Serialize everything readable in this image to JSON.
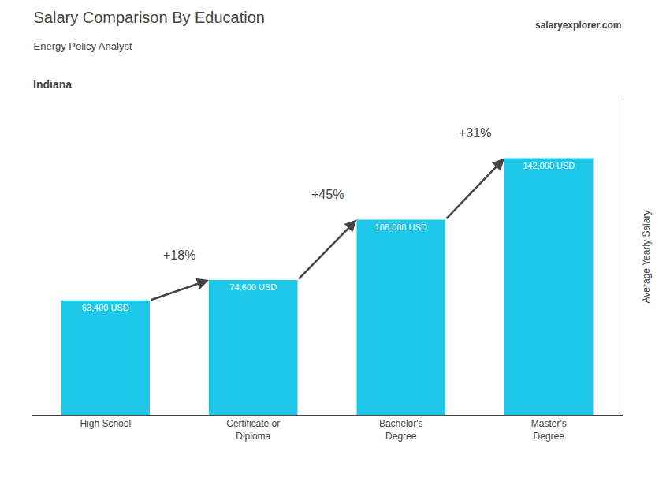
{
  "chart_data": {
    "type": "bar",
    "title": "Salary Comparison By Education",
    "subtitle": "Energy Policy Analyst",
    "ylabel": "Average Yearly Salary",
    "categories": [
      "High School",
      "Certificate or\nDiploma",
      "Bachelor's\nDegree",
      "Master's\nDegree"
    ],
    "values": [
      63400,
      74600,
      108000,
      142000
    ],
    "value_labels": [
      "63,400 USD",
      "74,600 USD",
      "108,000 USD",
      "142,000 USD"
    ],
    "data_labels": true,
    "color": "#1ec8e8",
    "ylim": [
      0,
      175000
    ],
    "grid": false,
    "tick_labels": "x",
    "annotations": [
      {
        "text": "Indiana"
      },
      {
        "text": "salaryexplorer.com"
      },
      {
        "text": "+18%",
        "from": "High School",
        "to": "Certificate or\nDiploma"
      },
      {
        "text": "+45%",
        "from": "Certificate or\nDiploma",
        "to": "Bachelor's\nDegree"
      },
      {
        "text": "+31%",
        "from": "Bachelor's\nDegree",
        "to": "Master's\nDegree"
      }
    ]
  }
}
